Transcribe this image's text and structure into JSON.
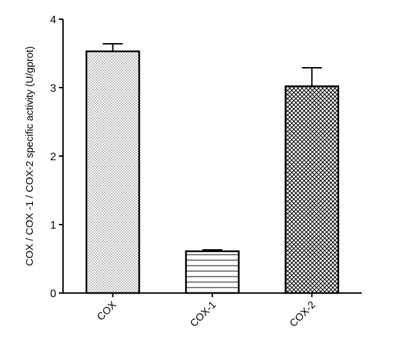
{
  "chart_data": {
    "type": "bar",
    "title": "",
    "xlabel": "",
    "ylabel": "COX / COX -1 / COX-2 specific activity (U/gprot)",
    "categories": [
      "COX",
      "COX-1",
      "COX-2"
    ],
    "values": [
      3.53,
      0.61,
      3.02
    ],
    "errors": [
      0.11,
      0.02,
      0.27
    ],
    "bar_patterns": [
      "dots",
      "horizontal-lines",
      "crosshatch"
    ],
    "ylim": [
      0,
      4
    ],
    "yticks": [
      "0",
      "1",
      "2",
      "3",
      "4"
    ],
    "grid": false,
    "legend": "none"
  }
}
